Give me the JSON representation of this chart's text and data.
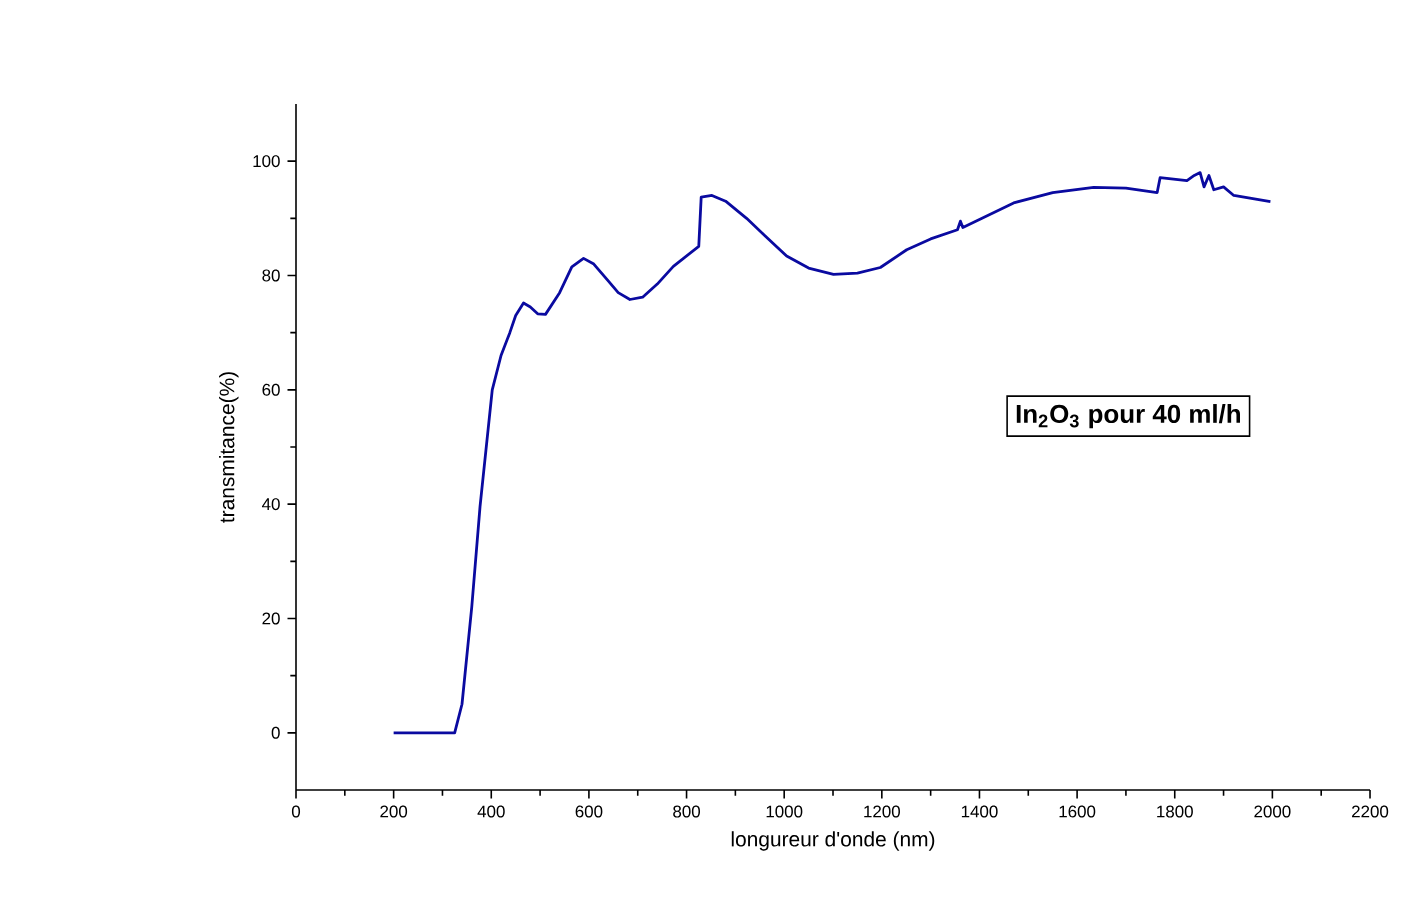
{
  "chart_data": {
    "type": "line",
    "xlabel": "longureur d'onde (nm)",
    "ylabel": "transmitance(%)",
    "annotations": [
      "In$_{2}$O$_{3}$ pour 40 ml/h"
    ],
    "series": [
      {
        "color": "#0a0aa0",
        "x": [
          200,
          325,
          340,
          360,
          377,
          402,
          420,
          438,
          450,
          466,
          480,
          495,
          511,
          540,
          565,
          589,
          610,
          640,
          660,
          684,
          710,
          740,
          773,
          825,
          830,
          852,
          880,
          923,
          960,
          1005,
          1050,
          1101,
          1150,
          1197,
          1251,
          1300,
          1355,
          1361,
          1366,
          1470,
          1550,
          1634,
          1700,
          1764,
          1770,
          1825,
          1840,
          1852,
          1860,
          1870,
          1880,
          1900,
          1921,
          1996
        ],
        "values": [
          0,
          0,
          5,
          22,
          39.6,
          60,
          66,
          70,
          73,
          75.2,
          74.5,
          73.3,
          73.2,
          77,
          81.5,
          83,
          82,
          79,
          77,
          75.8,
          76.2,
          78.5,
          81.6,
          85.1,
          93.7,
          94,
          93,
          90,
          87,
          83.4,
          81.3,
          80.2,
          80.4,
          81.4,
          84.5,
          86.4,
          88,
          89.5,
          88.4,
          92.7,
          94.5,
          95.4,
          95.3,
          94.5,
          97.1,
          96.6,
          97.5,
          98,
          95.5,
          97.5,
          95,
          95.5,
          94,
          92.9
        ]
      }
    ],
    "xlim": [
      0,
      2200
    ],
    "xticks": [
      0,
      200,
      400,
      600,
      800,
      1000,
      1200,
      1400,
      1600,
      1800,
      2000,
      2200
    ],
    "ylim": [
      -10,
      110
    ],
    "yticks": [
      0,
      20,
      40,
      60,
      80,
      100
    ],
    "grid": false,
    "marker": "none",
    "line_style": "solid"
  }
}
